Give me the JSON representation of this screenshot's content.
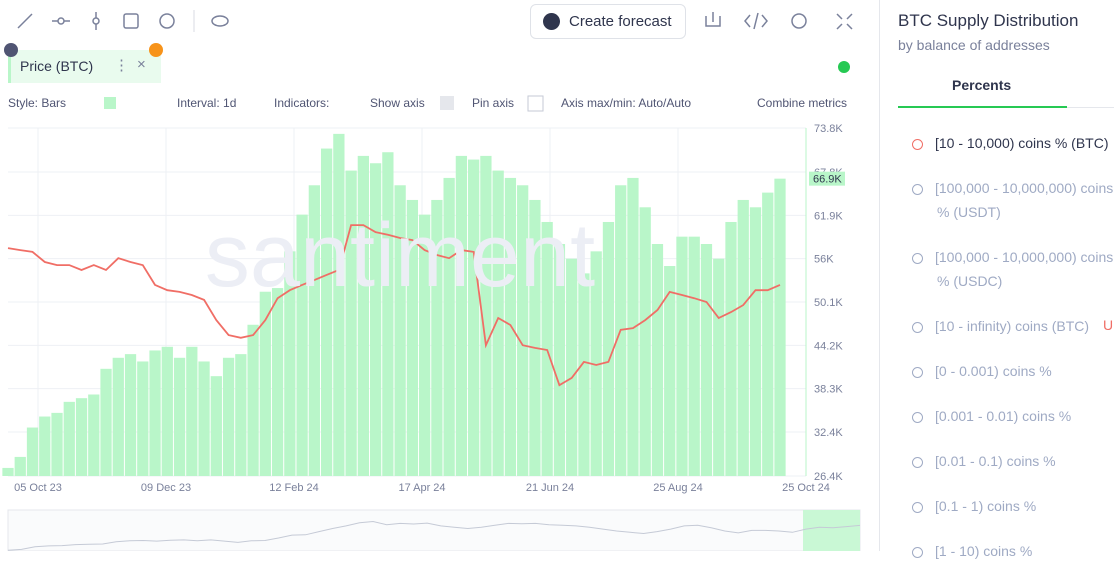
{
  "toolbar": {
    "create_forecast": "Create forecast"
  },
  "metric_tag": {
    "label": "Price (BTC)",
    "close": "×"
  },
  "settings": {
    "style": "Style: Bars",
    "interval": "Interval: 1d",
    "indicators": "Indicators:",
    "show_axis": "Show axis",
    "pin_axis": "Pin axis",
    "axis_maxmin": "Axis max/min: Auto/Auto",
    "combine": "Combine metrics"
  },
  "watermark": "santiment",
  "chart_data": {
    "type": "bar",
    "series": [
      {
        "name": "Price (BTC)",
        "color": "#b9f6c9",
        "values": [
          27500,
          29000,
          33000,
          34500,
          35000,
          36500,
          37000,
          37500,
          41000,
          42500,
          43000,
          42000,
          43500,
          44000,
          42500,
          44000,
          42000,
          40000,
          42500,
          43000,
          47000,
          51500,
          52000,
          57000,
          62000,
          66000,
          71000,
          73000,
          68000,
          70000,
          69000,
          70500,
          66000,
          64000,
          62000,
          64000,
          67000,
          70000,
          69500,
          70000,
          68000,
          67000,
          66000,
          64000,
          61000,
          58000,
          56000,
          54000,
          57000,
          61000,
          66000,
          67000,
          63000,
          58000,
          55000,
          59000,
          59000,
          58000,
          56000,
          61000,
          64000,
          63000,
          65000,
          66900
        ],
        "value_labels": [
          null,
          null,
          null,
          null,
          null,
          null,
          null,
          null,
          null,
          null,
          null,
          null,
          null,
          null,
          null,
          null,
          null,
          null,
          null,
          null,
          null,
          null,
          null,
          null,
          null,
          null,
          null,
          null,
          null,
          null,
          null,
          null,
          null,
          null,
          null,
          null,
          null,
          null,
          null,
          null,
          null,
          null,
          null,
          null,
          null,
          null,
          null,
          null,
          null,
          null,
          null,
          null,
          null,
          null,
          null,
          null,
          null,
          null,
          null,
          null,
          null,
          null,
          null,
          "66.9K"
        ]
      },
      {
        "name": "[10 - 10,000) coins % (BTC)",
        "color": "#f06e66",
        "axis": "y2",
        "values": [
          65.5,
          64.9,
          64.4,
          61.5,
          60.6,
          60.6,
          59.2,
          60.6,
          59.2,
          62.6,
          61.5,
          60.6,
          54.9,
          53.4,
          52.9,
          52.0,
          50.6,
          44.8,
          40.5,
          39.7,
          40.5,
          44.8,
          51.1,
          53.4,
          54.9,
          56.3,
          57.8,
          59.2,
          72.1,
          72.1,
          70.1,
          69.3,
          68.4,
          67.8,
          64.9,
          63.5,
          62.6,
          64.9,
          64.4,
          37.6,
          45.4,
          43.4,
          37.6,
          36.8,
          36.2,
          26.1,
          28.2,
          32.8,
          31.9,
          32.8,
          42.0,
          42.5,
          44.8,
          47.7,
          52.9,
          52.0,
          51.1,
          50.0,
          45.4,
          47.1,
          49.1,
          53.4,
          53.4,
          54.9
        ]
      }
    ],
    "ylim": [
      26400,
      73800
    ],
    "yticks": [
      {
        "value": 26400,
        "label": "26.4K"
      },
      {
        "value": 32400,
        "label": "32.4K"
      },
      {
        "value": 38300,
        "label": "38.3K"
      },
      {
        "value": 44200,
        "label": "44.2K"
      },
      {
        "value": 50100,
        "label": "50.1K"
      },
      {
        "value": 56000,
        "label": "56K"
      },
      {
        "value": 61900,
        "label": "61.9K"
      },
      {
        "value": 67800,
        "label": "67.8K"
      },
      {
        "value": 73800,
        "label": "73.8K"
      }
    ],
    "y2lim": [
      0,
      100
    ],
    "xtick_labels": [
      "05 Oct 23",
      "09 Dec 23",
      "12 Feb 24",
      "17 Apr 24",
      "21 Jun 24",
      "25 Aug 24",
      "25 Oct 24"
    ],
    "grid": true
  },
  "panel": {
    "title": "BTC Supply Distribution",
    "subtitle": "by balance of addresses",
    "tab": "Percents",
    "items": [
      "[10 - 10,000) coins % (BTC)",
      "[100,000 - 10,000,000) coins % (USDT)",
      "[100,000 - 10,000,000) coins % (USDC)",
      "[10 - infinity) coins (BTC)",
      "[0 - 0.001) coins %",
      "[0.001 - 0.01) coins %",
      "[0.01 - 0.1) coins %",
      "[0.1 - 1) coins %",
      "[1 - 10) coins %"
    ],
    "badge": "U"
  }
}
